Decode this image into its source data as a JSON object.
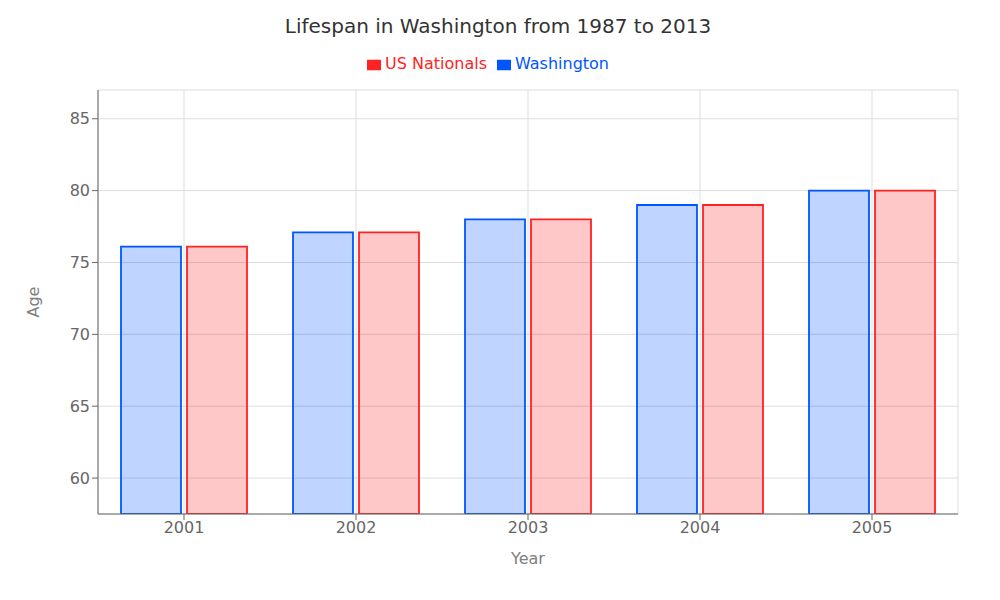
{
  "chart_data": {
    "type": "bar",
    "title": "Lifespan in Washington from 1987 to 2013",
    "x_label": "Year",
    "y_label": "Age",
    "categories": [
      "2001",
      "2002",
      "2003",
      "2004",
      "2005"
    ],
    "series": [
      {
        "name": "Washington",
        "color": "#0055ff",
        "values": [
          76.1,
          77.1,
          78.0,
          79.0,
          80.0
        ]
      },
      {
        "name": "US Nationals",
        "color": "#ff2222",
        "values": [
          76.1,
          77.1,
          78.0,
          79.0,
          80.0
        ]
      }
    ],
    "ylim": [
      57.5,
      87
    ],
    "yticks": [
      60,
      65,
      70,
      75,
      80,
      85
    ],
    "grid": true,
    "legend": "top"
  }
}
